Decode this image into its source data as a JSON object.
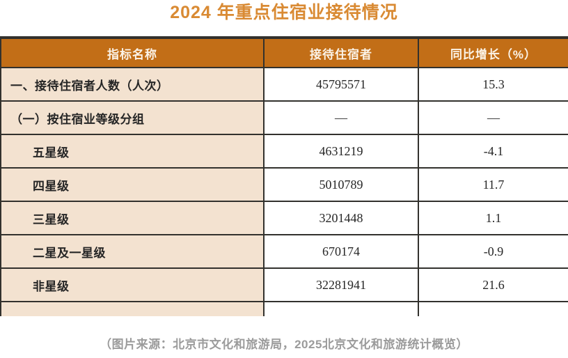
{
  "title": "2024 年重点住宿业接待情况",
  "table": {
    "columns": [
      "指标名称",
      "接待住宿者",
      "同比增长（%）"
    ],
    "rows": [
      {
        "indicator": "一、接待住宿者人数（人次）",
        "value": "45795571",
        "growth": "15.3",
        "indent": 0
      },
      {
        "indicator": "（一）按住宿业等级分组",
        "value": "—",
        "growth": "—",
        "indent": 0
      },
      {
        "indicator": "五星级",
        "value": "4631219",
        "growth": "-4.1",
        "indent": 1
      },
      {
        "indicator": "四星级",
        "value": "5010789",
        "growth": "11.7",
        "indent": 1
      },
      {
        "indicator": "三星级",
        "value": "3201448",
        "growth": "1.1",
        "indent": 1
      },
      {
        "indicator": "二星及一星级",
        "value": "670174",
        "growth": "-0.9",
        "indent": 1
      },
      {
        "indicator": "非星级",
        "value": "32281941",
        "growth": "21.6",
        "indent": 1
      }
    ]
  },
  "footer": "（图片来源：北京市文化和旅游局，2025北京文化和旅游统计概览）",
  "chart_data": {
    "type": "table",
    "title": "2024 年重点住宿业接待情况",
    "columns": [
      "指标名称",
      "接待住宿者",
      "同比增长（%）"
    ],
    "rows": [
      [
        "一、接待住宿者人数（人次）",
        45795571,
        15.3
      ],
      [
        "（一）按住宿业等级分组",
        null,
        null
      ],
      [
        "五星级",
        4631219,
        -4.1
      ],
      [
        "四星级",
        5010789,
        11.7
      ],
      [
        "三星级",
        3201448,
        1.1
      ],
      [
        "二星及一星级",
        670174,
        -0.9
      ],
      [
        "非星级",
        32281941,
        21.6
      ]
    ]
  },
  "colors": {
    "title": "#D98A33",
    "header_bg": "#C26E17",
    "header_text": "#FBF3E7",
    "row_label_bg": "#F3E2D0",
    "cell_bg": "#FFFFFF",
    "border": "#32312D",
    "text": "#262626",
    "footer_text": "#9B9B9B"
  }
}
